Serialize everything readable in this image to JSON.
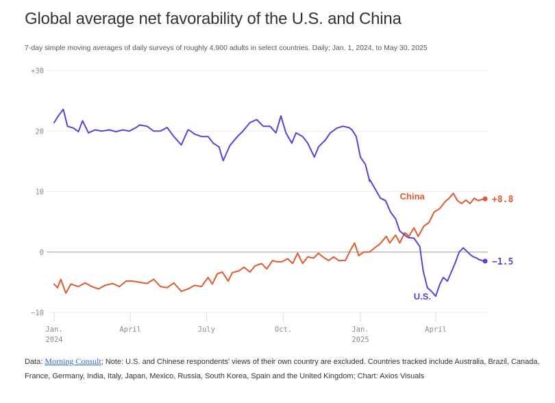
{
  "chart_data": {
    "type": "line",
    "title": "Global average net favorability of the U.S. and China",
    "subtitle": "7-day simple moving averages of daily surveys of roughly 4,900 adults in select countries. Daily; Jan. 1, 2024, to May 30, 2025",
    "xlabel": "",
    "ylabel": "",
    "ylim": [
      -10,
      30
    ],
    "xlim_days": [
      0,
      515
    ],
    "grid": true,
    "y_ticks": [
      {
        "value": 30,
        "label": "+30"
      },
      {
        "value": 20,
        "label": "20"
      },
      {
        "value": 10,
        "label": "10"
      },
      {
        "value": 0,
        "label": "0"
      },
      {
        "value": -10,
        "label": "−10"
      }
    ],
    "x_ticks": [
      {
        "day": 0,
        "label": "Jan.",
        "sublabel": "2024"
      },
      {
        "day": 91,
        "label": "April",
        "sublabel": ""
      },
      {
        "day": 182,
        "label": "July",
        "sublabel": ""
      },
      {
        "day": 274,
        "label": "Oct.",
        "sublabel": ""
      },
      {
        "day": 366,
        "label": "Jan.",
        "sublabel": "2025"
      },
      {
        "day": 456,
        "label": "April",
        "sublabel": ""
      }
    ],
    "series": [
      {
        "name": "U.S.",
        "color": "#5b3fd6",
        "end_label": "−1.5",
        "end_value": -1.5,
        "x_days": [
          0,
          5,
          11,
          16,
          23,
          29,
          34,
          41,
          49,
          57,
          66,
          74,
          82,
          90,
          98,
          102,
          111,
          119,
          127,
          135,
          143,
          152,
          160,
          161,
          168,
          176,
          184,
          184,
          190,
          197,
          202,
          210,
          219,
          225,
          234,
          242,
          250,
          258,
          265,
          271,
          277,
          284,
          289,
          297,
          303,
          311,
          316,
          324,
          330,
          338,
          345,
          352,
          356,
          361,
          366,
          372,
          377,
          377,
          390,
          396,
          402,
          408,
          413,
          419,
          423,
          430,
          437,
          441,
          446,
          451,
          456,
          461,
          465,
          470,
          479,
          484,
          489,
          494,
          498,
          501,
          505,
          507,
          511,
          515
        ],
        "values": [
          21.4,
          22.5,
          23.6,
          20.8,
          20.5,
          19.9,
          21.7,
          19.7,
          20.2,
          20.0,
          20.2,
          19.9,
          20.2,
          20.0,
          20.6,
          21.0,
          20.8,
          20.0,
          20.0,
          20.6,
          19.1,
          17.7,
          20.2,
          20.2,
          19.5,
          19.1,
          19.1,
          19.1,
          18.0,
          17.4,
          15.1,
          17.6,
          19.1,
          19.9,
          21.4,
          21.9,
          20.8,
          20.8,
          19.7,
          22.5,
          19.7,
          18.0,
          19.7,
          19.1,
          18.0,
          15.7,
          17.4,
          18.5,
          19.7,
          20.5,
          20.8,
          20.6,
          20.2,
          19.1,
          15.7,
          14.5,
          11.7,
          12.0,
          8.9,
          8.5,
          6.6,
          5.5,
          3.5,
          2.8,
          2.4,
          2.3,
          0.9,
          -3.1,
          -5.9,
          -6.5,
          -7.3,
          -5.3,
          -4.2,
          -4.8,
          -1.9,
          0.0,
          0.7,
          0.0,
          -0.5,
          -0.8,
          -1.0,
          -1.2,
          -1.4,
          -1.5
        ]
      },
      {
        "name": "China",
        "color": "#e05a2b",
        "end_label": "+8.8",
        "end_value": 8.8,
        "x_days": [
          0,
          4,
          8,
          14,
          20,
          29,
          37,
          45,
          53,
          61,
          70,
          78,
          86,
          94,
          102,
          111,
          119,
          127,
          135,
          143,
          152,
          160,
          168,
          176,
          184,
          189,
          195,
          201,
          208,
          213,
          221,
          227,
          234,
          240,
          248,
          254,
          261,
          266,
          272,
          279,
          285,
          291,
          297,
          303,
          310,
          316,
          321,
          328,
          334,
          340,
          348,
          354,
          359,
          364,
          370,
          377,
          383,
          389,
          397,
          401,
          408,
          413,
          419,
          424,
          430,
          435,
          442,
          448,
          454,
          461,
          467,
          472,
          477,
          482,
          487,
          492,
          497,
          502,
          507,
          511,
          515
        ],
        "values": [
          -5.3,
          -5.9,
          -4.5,
          -6.8,
          -5.3,
          -5.7,
          -5.1,
          -5.7,
          -6.1,
          -5.5,
          -5.2,
          -5.7,
          -4.8,
          -4.8,
          -5.0,
          -5.2,
          -4.5,
          -5.7,
          -5.9,
          -5.1,
          -6.5,
          -6.1,
          -5.5,
          -5.7,
          -4.2,
          -5.3,
          -3.6,
          -3.3,
          -4.8,
          -3.4,
          -3.1,
          -2.5,
          -3.3,
          -2.3,
          -1.9,
          -2.8,
          -1.4,
          -1.6,
          -1.6,
          -1.1,
          -1.9,
          -0.2,
          -1.9,
          -0.8,
          -1.0,
          -0.2,
          -0.8,
          -1.4,
          -0.8,
          -1.4,
          -1.4,
          0.3,
          1.5,
          -0.6,
          0.0,
          0.0,
          0.7,
          1.3,
          2.6,
          1.5,
          2.8,
          1.5,
          3.2,
          2.6,
          4.0,
          2.6,
          4.3,
          4.9,
          6.6,
          7.2,
          8.3,
          8.9,
          9.7,
          8.5,
          8.0,
          8.6,
          8.0,
          8.9,
          8.5,
          8.7,
          8.8
        ]
      }
    ],
    "annotations": [
      {
        "series": "China",
        "text": "China"
      },
      {
        "series": "U.S.",
        "text": "U.S."
      }
    ]
  },
  "footer": {
    "data_prefix": "Data: ",
    "source_link": "Morning Consult",
    "note": "; Note: U.S. and Chinese respondents' views of their own country are excluded. Countries tracked include Australia, Brazil, Canada, France, Germany, India, Italy, Japan, Mexico, Russia, South Korea, Spain and the United Kingdom; Chart: Axios Visuals"
  },
  "colors": {
    "us": "#5b3fd6",
    "china": "#e05a2b",
    "grid": "#ececec",
    "zero_line": "#bdbdbd",
    "axis_text": "#8a8a8a"
  }
}
